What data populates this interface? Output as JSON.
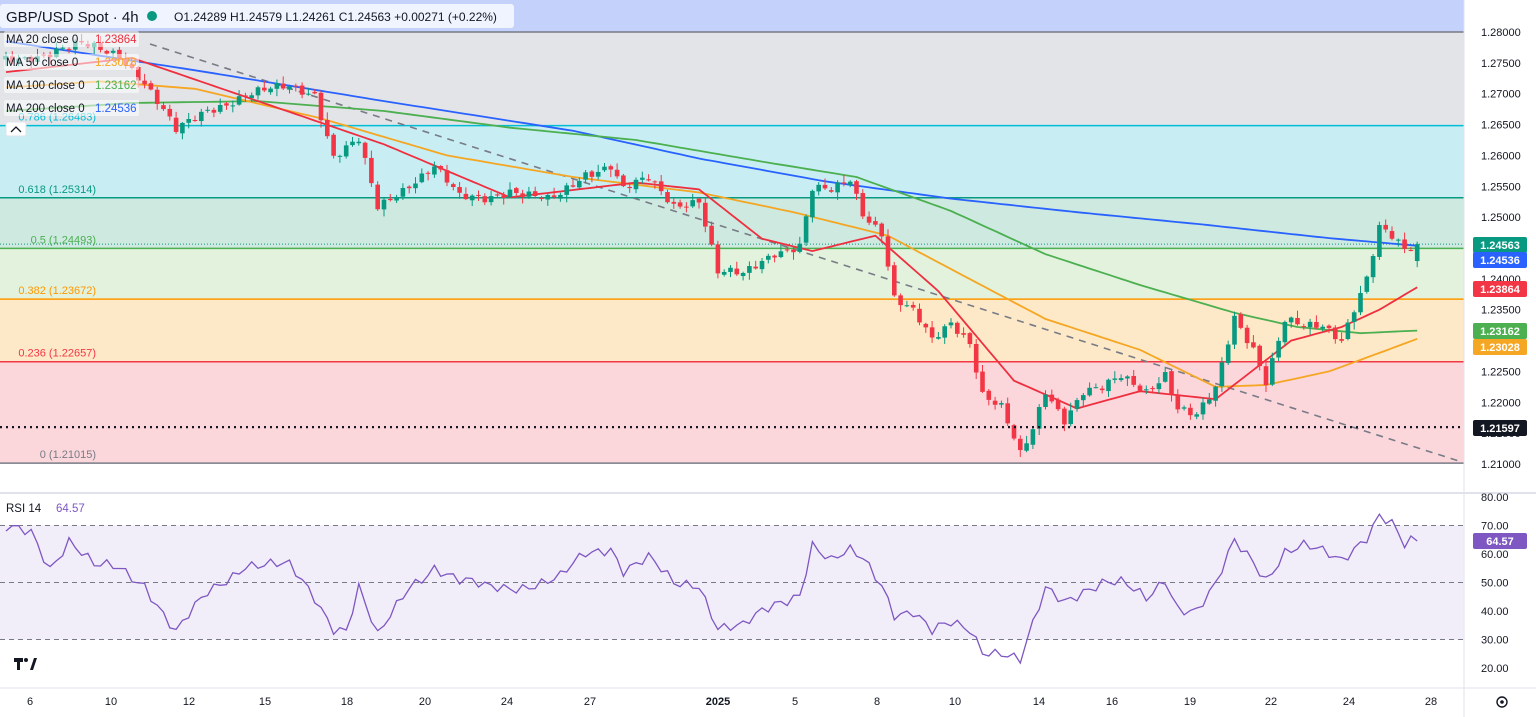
{
  "header": {
    "symbol": "GBP/USD Spot · 4h",
    "ohlc": "O1.24289  H1.24579  L1.24261  C1.24563  +0.00271 (+0.22%)"
  },
  "colors": {
    "ma20": "#ef2f3f",
    "ma50": "#f5a623",
    "ma100": "#4caf50",
    "ma200": "#2962ff",
    "up": "#089981",
    "down": "#f23645",
    "rsi": "#7e57c2",
    "trend": "#787b86"
  },
  "indicators": [
    {
      "key": "ma20",
      "label": "MA 20 close 0",
      "value": "1.23864"
    },
    {
      "key": "ma50",
      "label": "MA 50 close 0",
      "value": "1.23028"
    },
    {
      "key": "ma100",
      "label": "MA 100 close 0",
      "value": "1.23162"
    },
    {
      "key": "ma200",
      "label": "MA 200 close 0",
      "value": "1.24536"
    }
  ],
  "price_tags": [
    {
      "value": "1.24563",
      "color": "#089981"
    },
    {
      "value": "1.24536",
      "color": "#2962ff"
    },
    {
      "value": "1.23864",
      "color": "#f23645"
    },
    {
      "value": "1.23162",
      "color": "#4caf50"
    },
    {
      "value": "1.23028",
      "color": "#f5a623"
    },
    {
      "value": "1.21597",
      "color": "#131722"
    }
  ],
  "rsi": {
    "label": "RSI 14",
    "value": "64.57",
    "levels": [
      70,
      50,
      30
    ]
  },
  "chart_data": {
    "type": "candlestick",
    "title": "GBP/USD Spot · 4h",
    "ylim": [
      1.2086,
      1.2825
    ],
    "y_ticks": [
      "1.28000",
      "1.27500",
      "1.27000",
      "1.26500",
      "1.26000",
      "1.25500",
      "1.25000",
      "1.24500",
      "1.24000",
      "1.23500",
      "1.23000",
      "1.22500",
      "1.22000",
      "1.21500",
      "1.21000"
    ],
    "x_ticks": [
      "6",
      "10",
      "12",
      "15",
      "18",
      "20",
      "24",
      "27",
      "2025",
      "5",
      "8",
      "10",
      "14",
      "16",
      "19",
      "22",
      "24",
      "28"
    ],
    "fibonacci": [
      {
        "label": "0.786 (1.26483)",
        "level": 1.26483,
        "color": "#00bcd4"
      },
      {
        "label": "0.618 (1.25314)",
        "level": 1.25314,
        "color": "#089981"
      },
      {
        "label": "0.5 (1.24493)",
        "level": 1.24493,
        "color": "#4caf50"
      },
      {
        "label": "0.382 (1.23672)",
        "level": 1.23672,
        "color": "#ff9800"
      },
      {
        "label": "0.236 (1.22657)",
        "level": 1.22657,
        "color": "#f23645"
      },
      {
        "label": "0 (1.21015)",
        "level": 1.21015,
        "color": "#787b86"
      }
    ],
    "fib_top": 1.28,
    "support_line": 1.21597,
    "price_anchors": [
      [
        0,
        1.2755
      ],
      [
        6,
        1.2765
      ],
      [
        12,
        1.2778
      ],
      [
        18,
        1.2765
      ],
      [
        22,
        1.2718
      ],
      [
        27,
        1.2638
      ],
      [
        32,
        1.2676
      ],
      [
        38,
        1.2696
      ],
      [
        45,
        1.2712
      ],
      [
        49,
        1.2702
      ],
      [
        52,
        1.2598
      ],
      [
        56,
        1.2622
      ],
      [
        59,
        1.2515
      ],
      [
        64,
        1.2555
      ],
      [
        68,
        1.2582
      ],
      [
        72,
        1.253
      ],
      [
        76,
        1.2532
      ],
      [
        80,
        1.2545
      ],
      [
        86,
        1.2525
      ],
      [
        88,
        1.2535
      ],
      [
        92,
        1.2572
      ],
      [
        96,
        1.2585
      ],
      [
        98,
        1.2545
      ],
      [
        102,
        1.256
      ],
      [
        106,
        1.252
      ],
      [
        110,
        1.253
      ],
      [
        113,
        1.241
      ],
      [
        117,
        1.2405
      ],
      [
        122,
        1.2445
      ],
      [
        126,
        1.2455
      ],
      [
        128,
        1.2545
      ],
      [
        131,
        1.254
      ],
      [
        134,
        1.256
      ],
      [
        136,
        1.2508
      ],
      [
        139,
        1.2478
      ],
      [
        141,
        1.237
      ],
      [
        144,
        1.2345
      ],
      [
        147,
        1.2298
      ],
      [
        150,
        1.233
      ],
      [
        153,
        1.23
      ],
      [
        155,
        1.2215
      ],
      [
        158,
        1.219
      ],
      [
        161,
        1.2112
      ],
      [
        163,
        1.2155
      ],
      [
        165,
        1.222
      ],
      [
        168,
        1.2175
      ],
      [
        171,
        1.2218
      ],
      [
        174,
        1.222
      ],
      [
        177,
        1.224
      ],
      [
        181,
        1.222
      ],
      [
        184,
        1.2248
      ],
      [
        186,
        1.219
      ],
      [
        189,
        1.2175
      ],
      [
        192,
        1.222
      ],
      [
        195,
        1.234
      ],
      [
        198,
        1.229
      ],
      [
        200,
        1.2235
      ],
      [
        203,
        1.233
      ],
      [
        206,
        1.232
      ],
      [
        209,
        1.2325
      ],
      [
        212,
        1.2305
      ],
      [
        214,
        1.2355
      ],
      [
        216,
        1.24
      ],
      [
        218,
        1.248
      ],
      [
        220,
        1.2465
      ],
      [
        222,
        1.2445
      ],
      [
        224,
        1.24563
      ]
    ],
    "rsi_anchors": [
      [
        0,
        68
      ],
      [
        4,
        68
      ],
      [
        7,
        56
      ],
      [
        10,
        65
      ],
      [
        14,
        55
      ],
      [
        18,
        55
      ],
      [
        22,
        50
      ],
      [
        27,
        32
      ],
      [
        32,
        46
      ],
      [
        38,
        57
      ],
      [
        45,
        55
      ],
      [
        49,
        45
      ],
      [
        52,
        35
      ],
      [
        54,
        34
      ],
      [
        56,
        48
      ],
      [
        59,
        30
      ],
      [
        64,
        49
      ],
      [
        68,
        56
      ],
      [
        72,
        50
      ],
      [
        76,
        48
      ],
      [
        80,
        49
      ],
      [
        86,
        50
      ],
      [
        88,
        51
      ],
      [
        92,
        60
      ],
      [
        96,
        63
      ],
      [
        98,
        55
      ],
      [
        102,
        58
      ],
      [
        106,
        49
      ],
      [
        110,
        50
      ],
      [
        113,
        35
      ],
      [
        117,
        34
      ],
      [
        122,
        42
      ],
      [
        126,
        47
      ],
      [
        128,
        64
      ],
      [
        131,
        57
      ],
      [
        134,
        60
      ],
      [
        136,
        58
      ],
      [
        139,
        50
      ],
      [
        141,
        40
      ],
      [
        144,
        40
      ],
      [
        147,
        32
      ],
      [
        150,
        35
      ],
      [
        153,
        34
      ],
      [
        155,
        27
      ],
      [
        158,
        26
      ],
      [
        161,
        22
      ],
      [
        163,
        34
      ],
      [
        165,
        47
      ],
      [
        168,
        44
      ],
      [
        171,
        48
      ],
      [
        174,
        50
      ],
      [
        177,
        49
      ],
      [
        181,
        44
      ],
      [
        184,
        52
      ],
      [
        186,
        42
      ],
      [
        189,
        40
      ],
      [
        192,
        48
      ],
      [
        195,
        64
      ],
      [
        198,
        58
      ],
      [
        200,
        52
      ],
      [
        203,
        61
      ],
      [
        206,
        62
      ],
      [
        209,
        60
      ],
      [
        212,
        58
      ],
      [
        214,
        63
      ],
      [
        216,
        67
      ],
      [
        218,
        74
      ],
      [
        220,
        70
      ],
      [
        222,
        62
      ],
      [
        224,
        64.57
      ]
    ],
    "ma20_anchors": [
      [
        0,
        1.2735
      ],
      [
        20,
        1.2758
      ],
      [
        40,
        1.2688
      ],
      [
        60,
        1.2618
      ],
      [
        80,
        1.2532
      ],
      [
        100,
        1.2556
      ],
      [
        110,
        1.2545
      ],
      [
        120,
        1.2465
      ],
      [
        128,
        1.2445
      ],
      [
        138,
        1.247
      ],
      [
        148,
        1.238
      ],
      [
        160,
        1.2235
      ],
      [
        170,
        1.219
      ],
      [
        180,
        1.2218
      ],
      [
        192,
        1.2205
      ],
      [
        204,
        1.23
      ],
      [
        212,
        1.2322
      ],
      [
        218,
        1.235
      ],
      [
        224,
        1.23864
      ]
    ],
    "ma50_anchors": [
      [
        0,
        1.271
      ],
      [
        15,
        1.272
      ],
      [
        30,
        1.2708
      ],
      [
        50,
        1.266
      ],
      [
        70,
        1.26
      ],
      [
        90,
        1.2565
      ],
      [
        110,
        1.254
      ],
      [
        125,
        1.2508
      ],
      [
        140,
        1.247
      ],
      [
        152,
        1.2405
      ],
      [
        165,
        1.2335
      ],
      [
        180,
        1.2285
      ],
      [
        192,
        1.2225
      ],
      [
        200,
        1.2228
      ],
      [
        210,
        1.225
      ],
      [
        218,
        1.228
      ],
      [
        224,
        1.23028
      ]
    ],
    "ma100_anchors": [
      [
        0,
        1.2672
      ],
      [
        20,
        1.2685
      ],
      [
        40,
        1.2688
      ],
      [
        60,
        1.2672
      ],
      [
        80,
        1.2645
      ],
      [
        100,
        1.2625
      ],
      [
        120,
        1.259
      ],
      [
        135,
        1.2565
      ],
      [
        150,
        1.251
      ],
      [
        165,
        1.244
      ],
      [
        180,
        1.239
      ],
      [
        195,
        1.2345
      ],
      [
        205,
        1.2322
      ],
      [
        215,
        1.2312
      ],
      [
        224,
        1.23162
      ]
    ],
    "ma200_anchors": [
      [
        0,
        1.2785
      ],
      [
        30,
        1.2738
      ],
      [
        60,
        1.2688
      ],
      [
        90,
        1.264
      ],
      [
        110,
        1.2595
      ],
      [
        130,
        1.2558
      ],
      [
        150,
        1.253
      ],
      [
        170,
        1.2508
      ],
      [
        190,
        1.2488
      ],
      [
        210,
        1.2466
      ],
      [
        224,
        1.24536
      ]
    ]
  }
}
